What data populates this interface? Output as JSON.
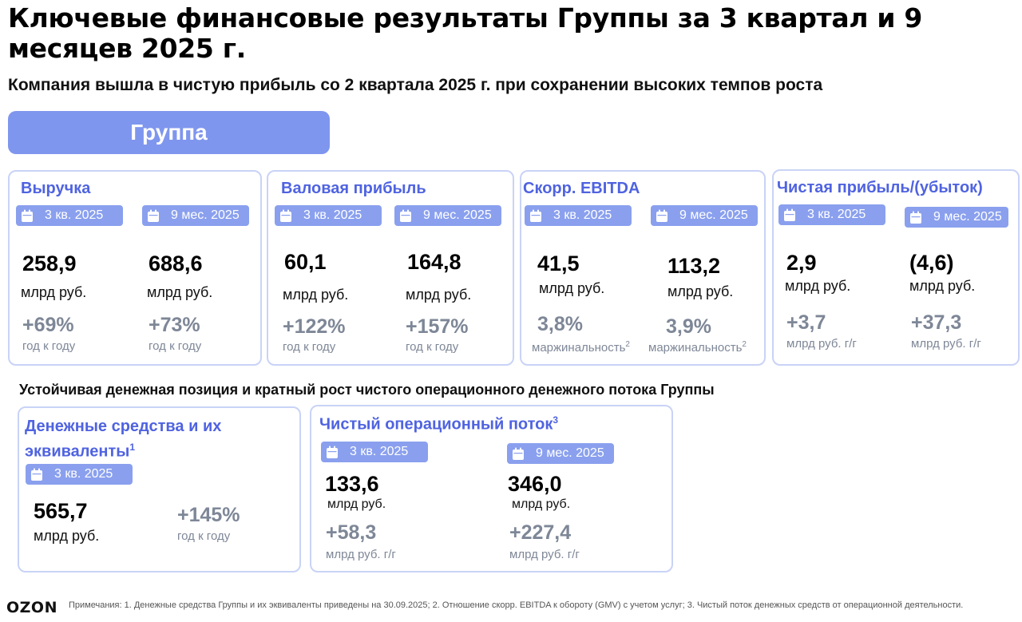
{
  "title": "Ключевые финансовые результаты Группы за 3 квартал и 9 месяцев 2025 г.",
  "subtitle": "Компания вышла в чистую прибыль со 2 квартала 2025 г. при сохранении высоких темпов роста",
  "group_label": "Группа",
  "icons": {
    "calendar": "calendar-icon"
  },
  "colors": {
    "accent": "#4f63e0",
    "pill": "#8aa0ee",
    "header_pill": "#7f96ee",
    "muted": "#7e8797",
    "border": "#c9d3f6"
  },
  "cards": [
    {
      "title": "Выручка",
      "q3": {
        "period": "3 кв. 2025",
        "value": "258,9",
        "unit": "млрд руб.",
        "change": "+69%",
        "note": "год к году"
      },
      "m9": {
        "period": "9 мес. 2025",
        "value": "688,6",
        "unit": "млрд руб.",
        "change": "+73%",
        "note": "год к году"
      }
    },
    {
      "title": "Валовая прибыль",
      "q3": {
        "period": "3 кв. 2025",
        "value": "60,1",
        "unit": "млрд руб.",
        "change": "+122%",
        "note": "год к году"
      },
      "m9": {
        "period": "9 мес. 2025",
        "value": "164,8",
        "unit": "млрд руб.",
        "change": "+157%",
        "note": "год к году"
      }
    },
    {
      "title": "Скорр. EBITDA",
      "q3": {
        "period": "3 кв. 2025",
        "value": "41,5",
        "unit": "млрд руб.",
        "change": "3,8%",
        "note": "маржинальность",
        "note_sup": "2"
      },
      "m9": {
        "period": "9 мес. 2025",
        "value": "113,2",
        "unit": "млрд руб.",
        "change": "3,9%",
        "note": "маржинальность",
        "note_sup": "2"
      }
    },
    {
      "title": "Чистая прибыль/(убыток)",
      "q3": {
        "period": "3 кв. 2025",
        "value": "2,9",
        "unit": "млрд руб.",
        "change": "+3,7",
        "note": "млрд руб. г/г"
      },
      "m9": {
        "period": "9 мес. 2025",
        "value": "(4,6)",
        "unit": "млрд руб.",
        "change": "+37,3",
        "note": "млрд руб. г/г"
      }
    }
  ],
  "section2_title": "Устойчивая денежная позиция и кратный рост чистого операционного денежного потока Группы",
  "cash": {
    "title": "Денежные средства и их эквиваленты",
    "title_sup": "1",
    "period": "3 кв. 2025",
    "value": "565,7",
    "unit": "млрд руб.",
    "change": "+145%",
    "note": "год к году"
  },
  "flow": {
    "title": "Чистый операционный поток",
    "title_sup": "3",
    "q3": {
      "period": "3 кв. 2025",
      "value": "133,6",
      "unit": "млрд руб.",
      "change": "+58,3",
      "note": "млрд руб. г/г"
    },
    "m9": {
      "period": "9 мес. 2025",
      "value": "346,0",
      "unit": "млрд руб.",
      "change": "+227,4",
      "note": "млрд руб. г/г"
    }
  },
  "footer": {
    "logo": "OZON",
    "notes": "Примечания: 1. Денежные средства Группы и их эквиваленты приведены на 30.09.2025; 2. Отношение скорр. EBITDA к обороту (GMV) с учетом услуг; 3. Чистый поток денежных средств от операционной деятельности."
  }
}
